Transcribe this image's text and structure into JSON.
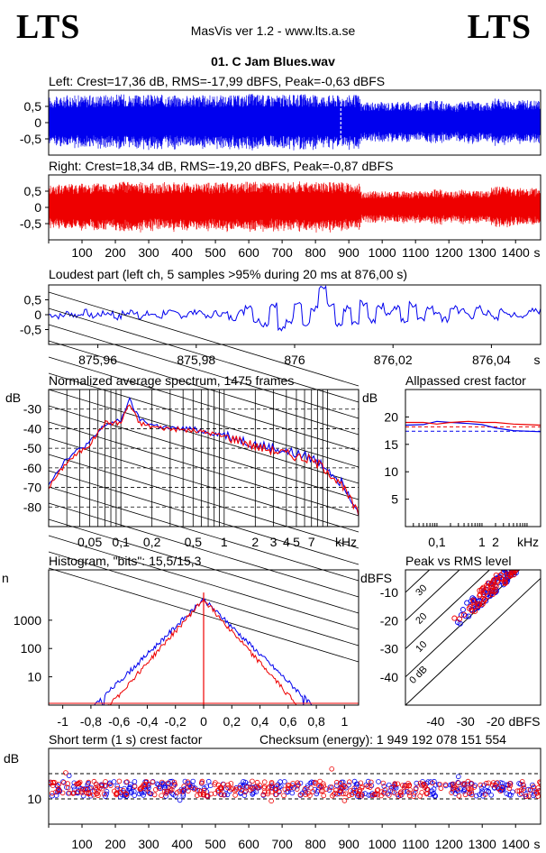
{
  "header": {
    "logo_left": "LTS",
    "logo_right": "LTS",
    "app_title": "MasVis ver 1.2 - www.lts.a.se",
    "file_name": "01. C Jam Blues.wav"
  },
  "colors": {
    "left": "#0000ee",
    "right": "#ee0000",
    "grid": "#000000"
  },
  "chart_data": [
    {
      "type": "area",
      "id": "left-waveform",
      "title": "Left: Crest=17,36 dB, RMS=-17,99 dBFS, Peak=-0,63 dBFS",
      "yticks": [
        "0,5",
        "0",
        "-0,5"
      ],
      "ylim": [
        -1,
        1
      ],
      "xlim": [
        0,
        1475
      ],
      "envelope": [
        0.8,
        0.85,
        0.85,
        0.88,
        0.88,
        0.85,
        0.86,
        0.86,
        0.85,
        0.85,
        0.85,
        0.85,
        0.9,
        0.86,
        0.86,
        0.88,
        0.86,
        0.86,
        0.86,
        0.62,
        0.64,
        0.65,
        0.62,
        0.68,
        0.6,
        0.66,
        0.62,
        0.75,
        0.7,
        0.7
      ],
      "marker_x": 876
    },
    {
      "type": "area",
      "id": "right-waveform",
      "title": "Right: Crest=18,34 dB, RMS=-19,20 dBFS, Peak=-0,87 dBFS",
      "yticks": [
        "0,5",
        "0",
        "-0,5"
      ],
      "ylim": [
        -1,
        1
      ],
      "xlim": [
        0,
        1475
      ],
      "envelope": [
        0.7,
        0.75,
        0.75,
        0.78,
        0.8,
        0.78,
        0.76,
        0.78,
        0.78,
        0.76,
        0.78,
        0.76,
        0.8,
        0.78,
        0.78,
        0.8,
        0.78,
        0.78,
        0.76,
        0.5,
        0.5,
        0.52,
        0.5,
        0.56,
        0.5,
        0.55,
        0.5,
        0.65,
        0.6,
        0.6
      ],
      "xticks": [
        "100",
        "200",
        "300",
        "400",
        "500",
        "600",
        "700",
        "800",
        "900",
        "1000",
        "1100",
        "1200",
        "1300",
        "1400"
      ],
      "xunit": "s"
    },
    {
      "type": "line",
      "id": "loudest-part",
      "title": "Loudest part (left  ch, 5 samples >95% during 20 ms at 876,00 s)",
      "xlim": [
        875.95,
        876.05
      ],
      "ylim": [
        -1,
        1
      ],
      "yticks": [
        "0,5",
        "0",
        "-0,5"
      ],
      "xticks": [
        "875,96",
        "875,98",
        "876",
        "876,02",
        "876,04"
      ],
      "xunit": "s",
      "y": [
        0.0,
        -0.05,
        0.05,
        -0.02,
        0.08,
        -0.05,
        0.02,
        0.06,
        -0.08,
        0.04,
        0.1,
        -0.05,
        0.02,
        -0.06,
        0.08,
        0.03,
        -0.02,
        0.06,
        0.12,
        -0.1,
        0.05,
        0.02,
        -0.1,
        0.08,
        0.3,
        -0.2,
        -0.3,
        0.35,
        -0.5,
        -0.2,
        0.45,
        -0.35,
        0.2,
        0.88,
        0.3,
        -0.4,
        0.2,
        -0.3,
        0.4,
        -0.2,
        0.3,
        0.08,
        0.22,
        -0.2,
        0.35,
        -0.1,
        0.2,
        0.1,
        -0.15,
        0.25,
        0.1,
        -0.05,
        0.2,
        0.05,
        -0.1,
        0.1,
        0.0,
        -0.08,
        0.05,
        0.12
      ]
    },
    {
      "type": "line",
      "id": "avg-spectrum",
      "title": "Normalized average spectrum, 1475 frames",
      "ylabel": "dB",
      "yticks": [
        "-30",
        "-40",
        "-50",
        "-60",
        "-70",
        "-80"
      ],
      "ylim": [
        -90,
        -20
      ],
      "xscale": "log",
      "xlim": [
        0.02,
        20
      ],
      "xticks": [
        "0,05",
        "0,1",
        "0,2",
        "0,5",
        "1",
        "2",
        "3",
        "4",
        "5",
        "7"
      ],
      "xunit": "kHz",
      "series": [
        {
          "x": [
            0.02,
            0.03,
            0.05,
            0.07,
            0.1,
            0.12,
            0.15,
            0.2,
            0.3,
            0.5,
            0.7,
            1,
            1.5,
            2,
            3,
            5,
            7,
            10,
            15,
            20
          ],
          "y": [
            -68,
            -55,
            -47,
            -38,
            -36,
            -25,
            -35,
            -38,
            -40,
            -40,
            -42,
            -43,
            -46,
            -48,
            -50,
            -53,
            -55,
            -60,
            -70,
            -82
          ]
        },
        {
          "x": [
            0.02,
            0.03,
            0.05,
            0.07,
            0.1,
            0.12,
            0.15,
            0.2,
            0.3,
            0.5,
            0.7,
            1,
            1.5,
            2,
            3,
            5,
            7,
            10,
            15,
            20
          ],
          "y": [
            -70,
            -57,
            -48,
            -37,
            -37,
            -27,
            -37,
            -39,
            -40,
            -41,
            -42,
            -44,
            -46,
            -49,
            -51,
            -54,
            -56,
            -61,
            -72,
            -84
          ]
        }
      ]
    },
    {
      "type": "line",
      "id": "allpassed-crest",
      "title": "Allpassed crest factor",
      "ylabel": "dB",
      "yticks": [
        "20",
        "15",
        "10",
        "5"
      ],
      "ylim": [
        0,
        25
      ],
      "xscale": "log",
      "xlim": [
        0.02,
        20
      ],
      "xticks": [
        "0,1",
        "1",
        "2"
      ],
      "xunit": "kHz",
      "series": [
        {
          "x": [
            0.02,
            0.05,
            0.1,
            0.2,
            0.5,
            1,
            2,
            5,
            10,
            20
          ],
          "y": [
            18.5,
            18.6,
            19.2,
            19.0,
            18.8,
            18.6,
            18.0,
            17.5,
            17.4,
            17.3
          ]
        },
        {
          "x": [
            0.02,
            0.05,
            0.1,
            0.2,
            0.5,
            1,
            2,
            5,
            10,
            20
          ],
          "y": [
            19.0,
            19.0,
            18.7,
            19.0,
            19.2,
            19.0,
            19.0,
            18.7,
            18.6,
            18.5
          ]
        }
      ]
    },
    {
      "type": "line",
      "id": "histogram",
      "title": "Histogram, \"bits\": 15,5/15,3",
      "ylabel": "n",
      "yscale": "log",
      "yticks": [
        "1000",
        "100",
        "10"
      ],
      "ylim": [
        1,
        60000
      ],
      "xlim": [
        -1.1,
        1.1
      ],
      "xticks": [
        "-1",
        "-0,8",
        "-0,6",
        "-0,4",
        "-0,2",
        "0",
        "0,2",
        "0,4",
        "0,6",
        "0,8",
        "1"
      ]
    },
    {
      "type": "scatter",
      "id": "peak-vs-rms",
      "title": "Peak vs RMS level",
      "ylabel": "dBFS",
      "xlabel": "dBFS",
      "yticks": [
        "-10",
        "-20",
        "-30",
        "-40"
      ],
      "xticks": [
        "-40",
        "-30",
        "-20"
      ],
      "xlim": [
        -50,
        -5
      ],
      "ylim": [
        -50,
        -2
      ],
      "diagonal_labels": [
        "40",
        "30",
        "20",
        "10",
        "0 dB"
      ]
    },
    {
      "type": "scatter",
      "id": "short-term-crest",
      "title": "Short term (1 s) crest factor",
      "ylabel": "dB",
      "yticks": [
        "10"
      ],
      "ylim": [
        0,
        30
      ],
      "xlim": [
        0,
        1475
      ],
      "xticks": [
        "100",
        "200",
        "300",
        "400",
        "500",
        "600",
        "700",
        "800",
        "900",
        "1000",
        "1100",
        "1200",
        "1300",
        "1400"
      ],
      "xunit": "s",
      "checksum": "Checksum (energy):  1 949 192 078 151 554"
    }
  ]
}
